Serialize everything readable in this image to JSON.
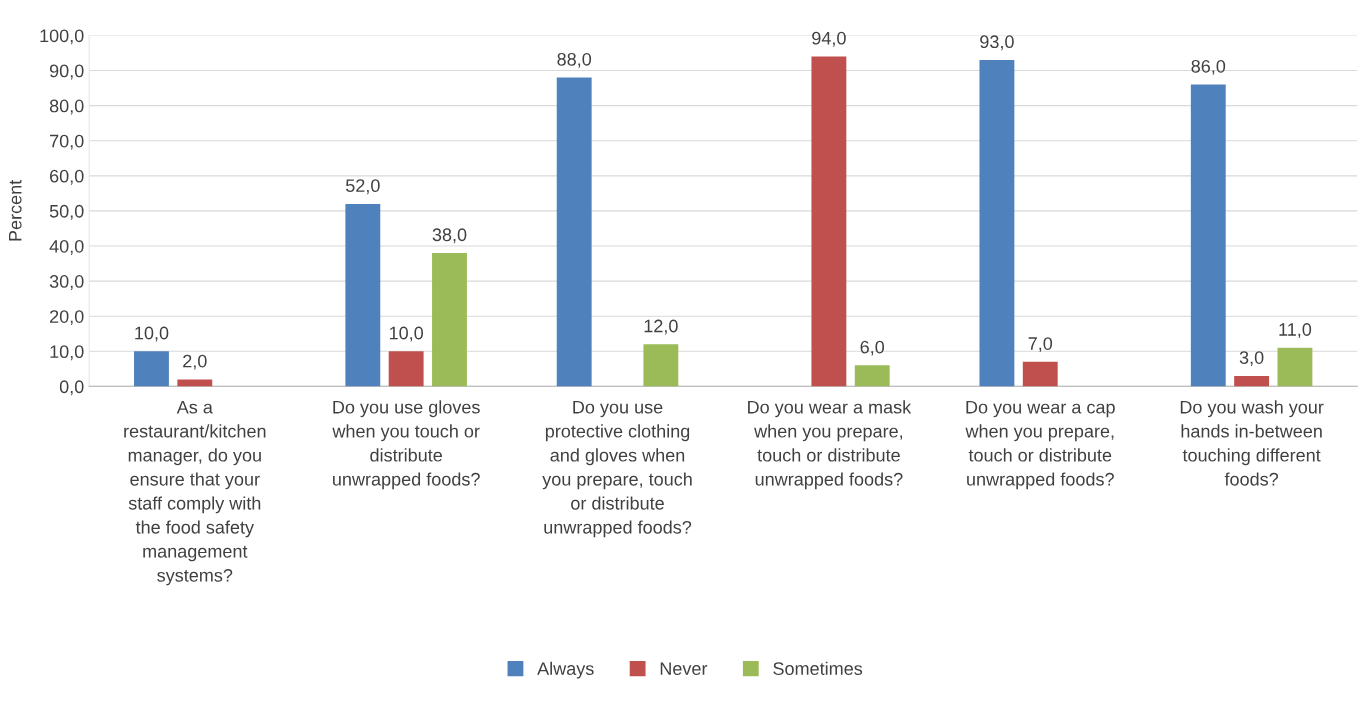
{
  "chart_data": {
    "type": "bar",
    "ylabel": "Percent",
    "categories": [
      "As a\nrestaurant/kitchen\nmanager, do you\nensure that your\nstaff comply with\nthe food safety\nmanagement\nsystems?",
      "Do you use gloves\nwhen you touch or\ndistribute\nunwrapped foods?",
      "Do you use\nprotective clothing\nand gloves when\nyou prepare, touch\nor distribute\nunwrapped foods?",
      "Do you wear a mask\nwhen you prepare,\ntouch or distribute\nunwrapped foods?",
      "Do you wear a cap\nwhen you prepare,\ntouch or distribute\nunwrapped foods?",
      "Do you wash your\nhands in-between\ntouching different\nfoods?"
    ],
    "series": [
      {
        "name": "Always",
        "color": "#4f81bd",
        "values": [
          10,
          52,
          88,
          null,
          93,
          86
        ],
        "value_labels": [
          "10,0",
          "52,0",
          "88,0",
          null,
          "93,0",
          "86,0"
        ]
      },
      {
        "name": "Never",
        "color": "#c0504d",
        "values": [
          2,
          10,
          null,
          94,
          7,
          3
        ],
        "value_labels": [
          "2,0",
          "10,0",
          null,
          "94,0",
          "7,0",
          "3,0"
        ]
      },
      {
        "name": "Sometimes",
        "color": "#9bbb59",
        "values": [
          null,
          38,
          12,
          6,
          null,
          11
        ],
        "value_labels": [
          null,
          "38,0",
          "12,0",
          "6,0",
          null,
          "11,0"
        ]
      }
    ],
    "ylim": [
      0,
      100
    ],
    "yticks": [
      {
        "value": 0,
        "label": "0,0"
      },
      {
        "value": 10,
        "label": "10,0"
      },
      {
        "value": 20,
        "label": "20,0"
      },
      {
        "value": 30,
        "label": "30,0"
      },
      {
        "value": 40,
        "label": "40,0"
      },
      {
        "value": 50,
        "label": "50,0"
      },
      {
        "value": 60,
        "label": "60,0"
      },
      {
        "value": 70,
        "label": "70,0"
      },
      {
        "value": 80,
        "label": "80,0"
      },
      {
        "value": 90,
        "label": "90,0"
      },
      {
        "value": 100,
        "label": "100,0"
      }
    ],
    "grid": "y",
    "legend": "bottom"
  }
}
